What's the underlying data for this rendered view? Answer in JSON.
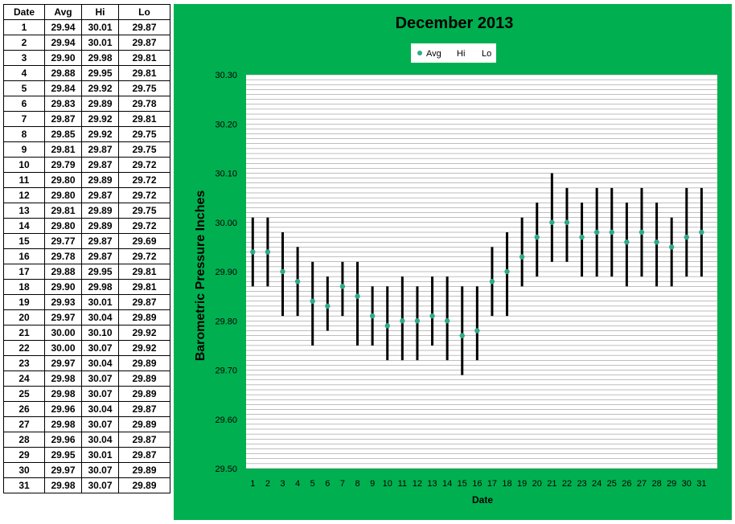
{
  "table": {
    "headers": [
      "Date",
      "Avg",
      "Hi",
      "Lo"
    ],
    "rows": [
      [
        "1",
        "29.94",
        "30.01",
        "29.87"
      ],
      [
        "2",
        "29.94",
        "30.01",
        "29.87"
      ],
      [
        "3",
        "29.90",
        "29.98",
        "29.81"
      ],
      [
        "4",
        "29.88",
        "29.95",
        "29.81"
      ],
      [
        "5",
        "29.84",
        "29.92",
        "29.75"
      ],
      [
        "6",
        "29.83",
        "29.89",
        "29.78"
      ],
      [
        "7",
        "29.87",
        "29.92",
        "29.81"
      ],
      [
        "8",
        "29.85",
        "29.92",
        "29.75"
      ],
      [
        "9",
        "29.81",
        "29.87",
        "29.75"
      ],
      [
        "10",
        "29.79",
        "29.87",
        "29.72"
      ],
      [
        "11",
        "29.80",
        "29.89",
        "29.72"
      ],
      [
        "12",
        "29.80",
        "29.87",
        "29.72"
      ],
      [
        "13",
        "29.81",
        "29.89",
        "29.75"
      ],
      [
        "14",
        "29.80",
        "29.89",
        "29.72"
      ],
      [
        "15",
        "29.77",
        "29.87",
        "29.69"
      ],
      [
        "16",
        "29.78",
        "29.87",
        "29.72"
      ],
      [
        "17",
        "29.88",
        "29.95",
        "29.81"
      ],
      [
        "18",
        "29.90",
        "29.98",
        "29.81"
      ],
      [
        "19",
        "29.93",
        "30.01",
        "29.87"
      ],
      [
        "20",
        "29.97",
        "30.04",
        "29.89"
      ],
      [
        "21",
        "30.00",
        "30.10",
        "29.92"
      ],
      [
        "22",
        "30.00",
        "30.07",
        "29.92"
      ],
      [
        "23",
        "29.97",
        "30.04",
        "29.89"
      ],
      [
        "24",
        "29.98",
        "30.07",
        "29.89"
      ],
      [
        "25",
        "29.98",
        "30.07",
        "29.89"
      ],
      [
        "26",
        "29.96",
        "30.04",
        "29.87"
      ],
      [
        "27",
        "29.98",
        "30.07",
        "29.89"
      ],
      [
        "28",
        "29.96",
        "30.04",
        "29.87"
      ],
      [
        "29",
        "29.95",
        "30.01",
        "29.87"
      ],
      [
        "30",
        "29.97",
        "30.07",
        "29.89"
      ],
      [
        "31",
        "29.98",
        "30.07",
        "29.89"
      ]
    ]
  },
  "chart_data": {
    "type": "scatter",
    "title": "December 2013",
    "xlabel": "Date",
    "ylabel": "Barometric Pressure Inches",
    "x": [
      1,
      2,
      3,
      4,
      5,
      6,
      7,
      8,
      9,
      10,
      11,
      12,
      13,
      14,
      15,
      16,
      17,
      18,
      19,
      20,
      21,
      22,
      23,
      24,
      25,
      26,
      27,
      28,
      29,
      30,
      31
    ],
    "x_tick_labels": [
      "1",
      "2",
      "3",
      "4",
      "5",
      "6",
      "7",
      "8",
      "9",
      "10",
      "11",
      "12",
      "13",
      "14",
      "15",
      "16",
      "17",
      "18",
      "19",
      "20",
      "21",
      "22",
      "23",
      "24",
      "25",
      "26",
      "27",
      "28",
      "29",
      "30",
      "31"
    ],
    "ylim": [
      29.5,
      30.3
    ],
    "y_tick_labels": [
      "29.50",
      "29.60",
      "29.70",
      "29.80",
      "29.90",
      "30.00",
      "30.10",
      "30.20",
      "30.30"
    ],
    "y_ticks": [
      29.5,
      29.6,
      29.7,
      29.8,
      29.9,
      30.0,
      30.1,
      30.2,
      30.3
    ],
    "grid": true,
    "legend_position": "top",
    "series": [
      {
        "name": "Avg",
        "color": "#2eaa8a",
        "values": [
          29.94,
          29.94,
          29.9,
          29.88,
          29.84,
          29.83,
          29.87,
          29.85,
          29.81,
          29.79,
          29.8,
          29.8,
          29.81,
          29.8,
          29.77,
          29.78,
          29.88,
          29.9,
          29.93,
          29.97,
          30.0,
          30.0,
          29.97,
          29.98,
          29.98,
          29.96,
          29.98,
          29.96,
          29.95,
          29.97,
          29.98
        ]
      },
      {
        "name": "Hi",
        "color": "#000000",
        "values": [
          30.01,
          30.01,
          29.98,
          29.95,
          29.92,
          29.89,
          29.92,
          29.92,
          29.87,
          29.87,
          29.89,
          29.87,
          29.89,
          29.89,
          29.87,
          29.87,
          29.95,
          29.98,
          30.01,
          30.04,
          30.1,
          30.07,
          30.04,
          30.07,
          30.07,
          30.04,
          30.07,
          30.04,
          30.01,
          30.07,
          30.07
        ]
      },
      {
        "name": "Lo",
        "color": "#000000",
        "values": [
          29.87,
          29.87,
          29.81,
          29.81,
          29.75,
          29.78,
          29.81,
          29.75,
          29.75,
          29.72,
          29.72,
          29.72,
          29.75,
          29.72,
          29.69,
          29.72,
          29.81,
          29.81,
          29.87,
          29.89,
          29.92,
          29.92,
          29.89,
          29.89,
          29.89,
          29.87,
          29.89,
          29.87,
          29.87,
          29.89,
          29.89
        ]
      }
    ],
    "colors": {
      "background": "#00b050",
      "plot_background": "#ffffff",
      "avg_marker": "#2eaa8a",
      "range_bar": "#000000",
      "gridline": "#7f7f7f"
    }
  }
}
